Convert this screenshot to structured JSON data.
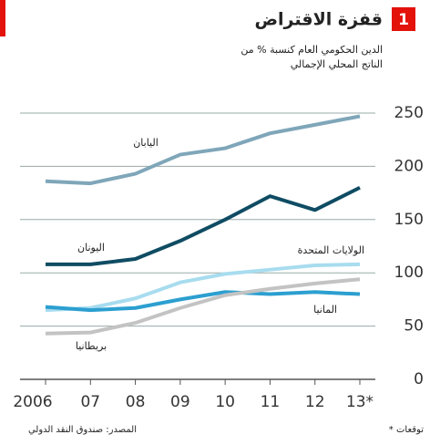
{
  "chart_data": {
    "type": "line",
    "badge": "1",
    "title": "قفزة الاقتراض",
    "subtitle": [
      "الدين الحكومي العام كنسبة % من",
      "الناتج المحلي الإجمالي"
    ],
    "categories": [
      "2006",
      "07",
      "08",
      "09",
      "10",
      "11",
      "12",
      "13*"
    ],
    "series": [
      {
        "name": "اليابان",
        "color": "#7fa6b9",
        "values": [
          186,
          184,
          193,
          211,
          217,
          231,
          239,
          247
        ]
      },
      {
        "name": "اليونان",
        "color": "#0f4c63",
        "values": [
          108,
          108,
          113,
          130,
          150,
          172,
          159,
          180
        ]
      },
      {
        "name": "الولايات المتحدة",
        "color": "#a8dcef",
        "values": [
          65,
          67,
          76,
          91,
          99,
          103,
          107,
          108
        ]
      },
      {
        "name": "المانيا",
        "color": "#2c9fd0",
        "values": [
          68,
          65,
          67,
          75,
          82,
          80,
          82,
          80
        ]
      },
      {
        "name": "بريطانيا",
        "color": "#c3c3c3",
        "values": [
          43,
          44,
          53,
          67,
          79,
          85,
          90,
          94
        ]
      }
    ],
    "ylim": [
      0,
      250
    ],
    "yticks": [
      0,
      50,
      100,
      150,
      200,
      250
    ],
    "grid": true,
    "source": "المصدر: صندوق النقد الدولي",
    "note": "* توقعات"
  }
}
